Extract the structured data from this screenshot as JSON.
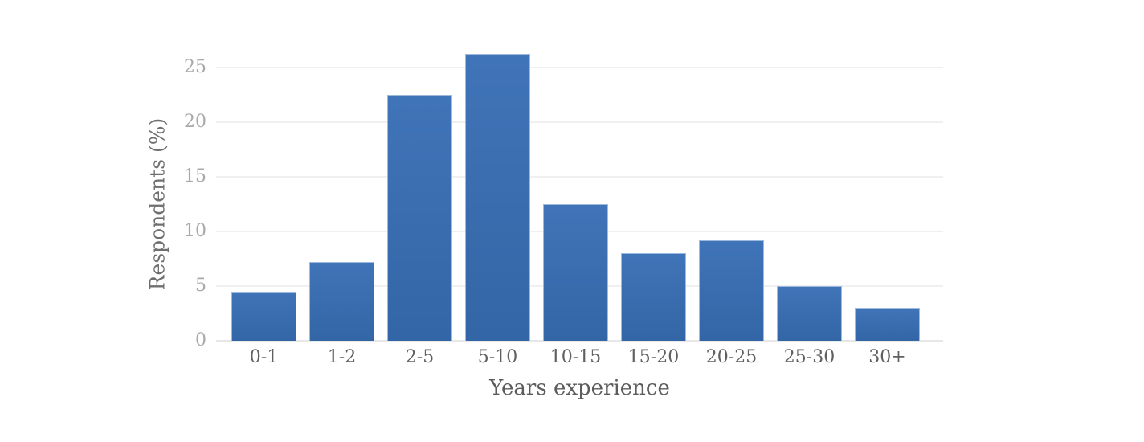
{
  "chart_data": {
    "type": "bar",
    "title": "",
    "categories": [
      "0-1",
      "1-2",
      "2-5",
      "5-10",
      "10-15",
      "15-20",
      "20-25",
      "25-30",
      "30+"
    ],
    "values": [
      4.5,
      7.2,
      22.5,
      26.2,
      12.5,
      8.0,
      9.2,
      5.0,
      3.0
    ],
    "xlabel": "Years experience",
    "ylabel": "Respondents (%)",
    "yticks": [
      0,
      5,
      10,
      15,
      20,
      25
    ],
    "ylim": [
      0,
      27.1
    ],
    "grid": "horizontal",
    "legend": "none",
    "colors": {
      "bar_top": "#4074B8",
      "bar_bottom": "#3366A6",
      "bar_border": "#9DB9DD",
      "gridline": "#F0F0F0",
      "baseline": "#E7E7E7",
      "y_tick_text": "#A9A9A9",
      "x_tick_text": "#606060",
      "y_axis_title_text": "#6F6F6F",
      "x_axis_title_text": "#5C5C5C",
      "background": "#FFFFFF"
    }
  }
}
